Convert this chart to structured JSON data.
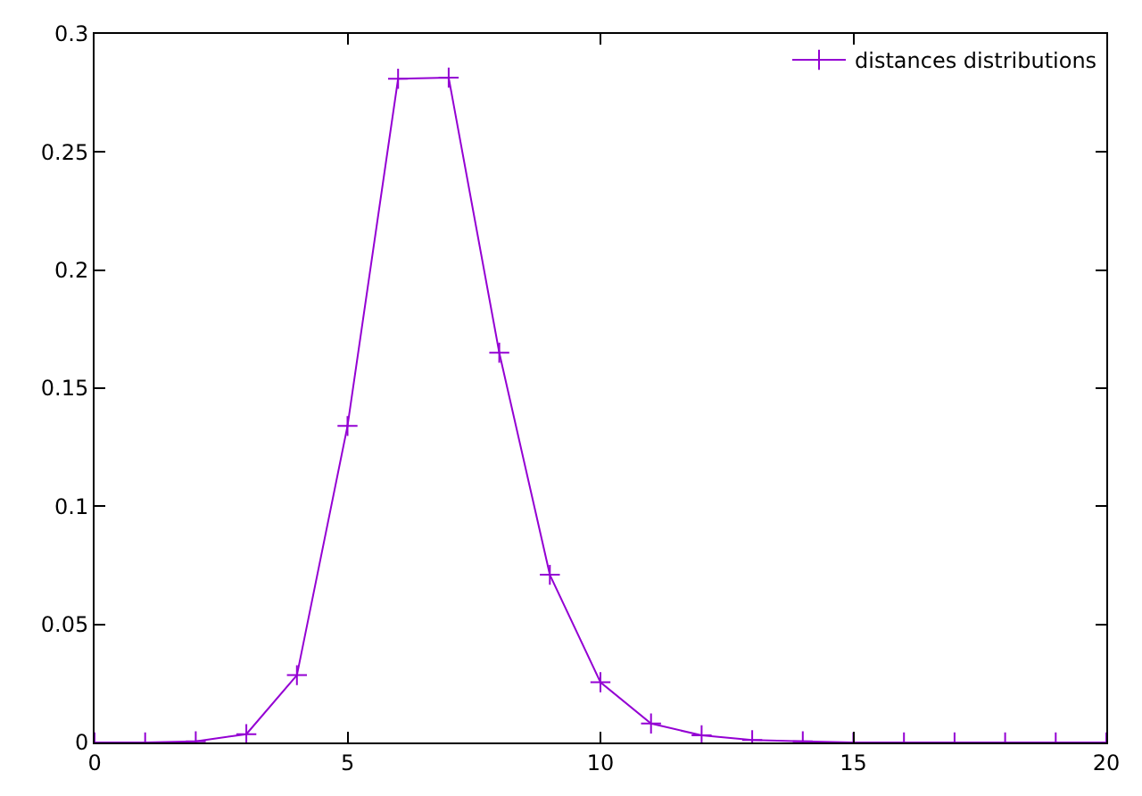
{
  "chart_data": {
    "type": "line",
    "x": [
      0,
      1,
      2,
      3,
      4,
      5,
      6,
      7,
      8,
      9,
      10,
      11,
      12,
      13,
      14,
      15,
      16,
      17,
      18,
      19,
      20
    ],
    "series": [
      {
        "name": "distances distributions",
        "color": "#9400d3",
        "values": [
          0,
          0,
          0.0005,
          0.0035,
          0.0285,
          0.134,
          0.281,
          0.2815,
          0.165,
          0.071,
          0.0255,
          0.008,
          0.003,
          0.001,
          0.0005,
          0,
          0,
          0,
          0,
          0,
          0
        ]
      }
    ],
    "xlim": [
      0,
      20
    ],
    "ylim": [
      0,
      0.3
    ],
    "xticks": [
      0,
      5,
      10,
      15,
      20
    ],
    "yticks": [
      0,
      0.05,
      0.1,
      0.15,
      0.2,
      0.25,
      0.3
    ],
    "legend": "top right",
    "marker": "cross",
    "line_style": "solid"
  }
}
